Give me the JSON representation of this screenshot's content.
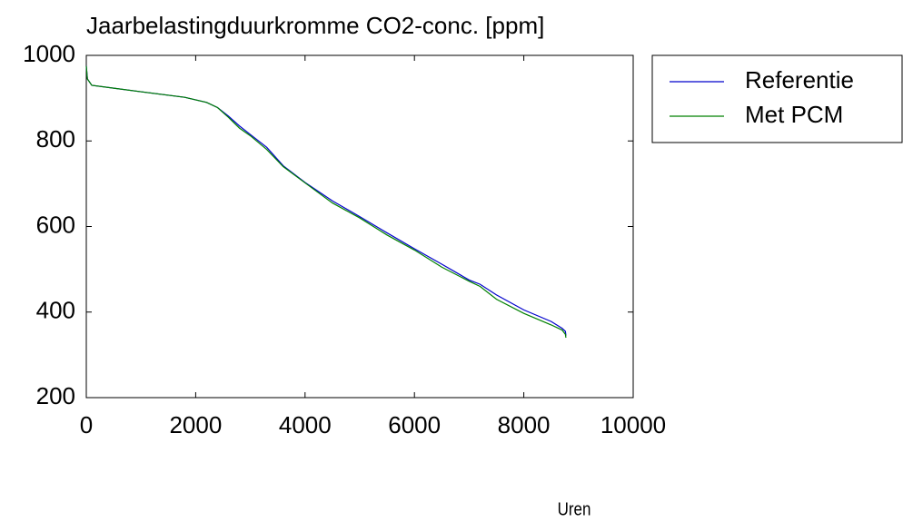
{
  "chart_data": {
    "type": "line",
    "title": "Jaarbelastingduurkromme CO2-conc. [ppm]",
    "x_label": "Uren",
    "x": [
      0,
      20,
      100,
      1000,
      1800,
      2200,
      2400,
      2600,
      2800,
      3000,
      3300,
      3600,
      4000,
      4500,
      5000,
      5500,
      6000,
      6500,
      7000,
      7200,
      7500,
      8000,
      8500,
      8700,
      8760,
      8770
    ],
    "series": [
      {
        "name": "Referentie",
        "color": "#0000cc",
        "values": [
          975,
          945,
          930,
          915,
          902,
          890,
          878,
          858,
          835,
          815,
          785,
          742,
          703,
          660,
          623,
          585,
          548,
          512,
          475,
          465,
          440,
          405,
          378,
          362,
          355,
          345
        ]
      },
      {
        "name": "Met PCM",
        "color": "#008000",
        "values": [
          975,
          945,
          930,
          915,
          902,
          890,
          878,
          855,
          830,
          812,
          780,
          740,
          702,
          655,
          620,
          580,
          545,
          505,
          472,
          460,
          430,
          397,
          370,
          358,
          348,
          340
        ]
      }
    ],
    "xlim": [
      0,
      10000
    ],
    "xticks": [
      0,
      2000,
      4000,
      6000,
      8000,
      10000
    ],
    "ylim": [
      200,
      1000
    ],
    "yticks": [
      200,
      400,
      600,
      800,
      1000
    ],
    "grid": false,
    "legend": "outside upper right"
  }
}
